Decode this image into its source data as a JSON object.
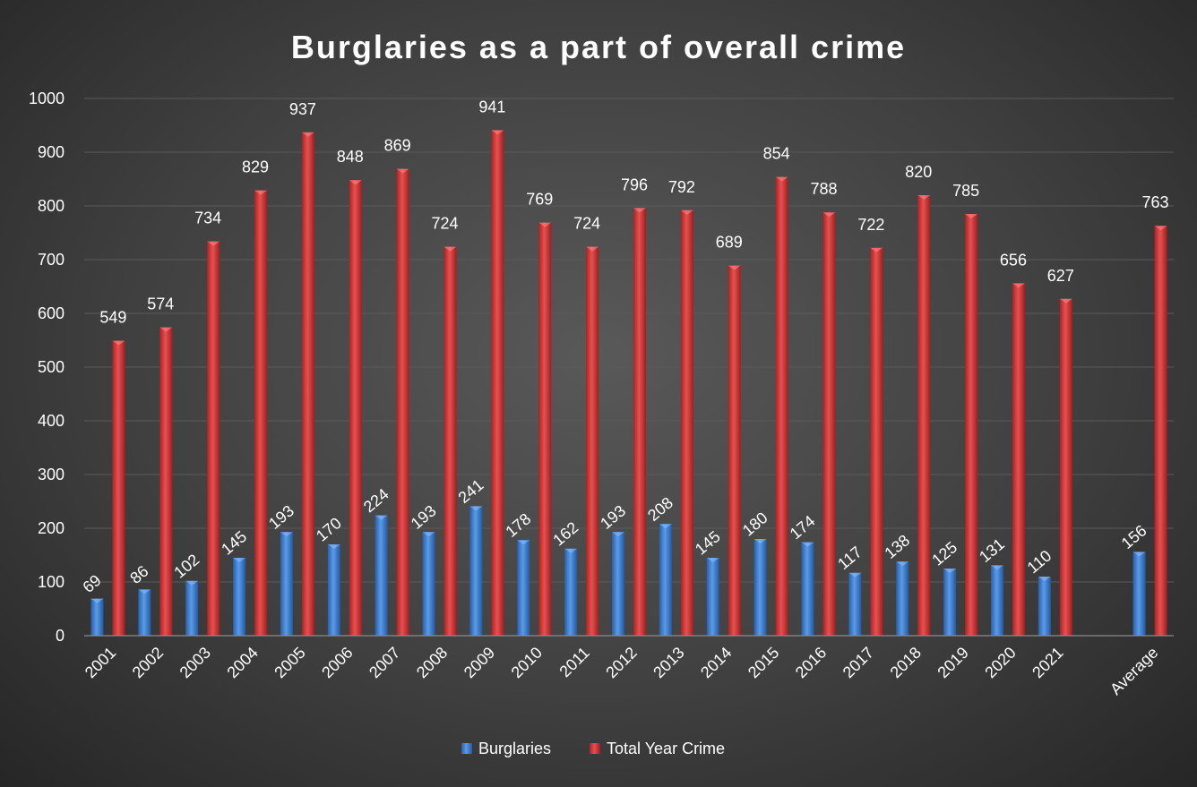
{
  "chart_data": {
    "type": "bar",
    "title": "Burglaries as a part of overall crime",
    "xlabel": "",
    "ylabel": "",
    "ylim": [
      0,
      1000
    ],
    "yticks": [
      0,
      100,
      200,
      300,
      400,
      500,
      600,
      700,
      800,
      900,
      1000
    ],
    "grid": true,
    "legend_position": "bottom",
    "categories": [
      "2001",
      "2002",
      "2003",
      "2004",
      "2005",
      "2006",
      "2007",
      "2008",
      "2009",
      "2010",
      "2011",
      "2012",
      "2013",
      "2014",
      "2015",
      "2016",
      "2017",
      "2018",
      "2019",
      "2020",
      "2021",
      "",
      "Average"
    ],
    "series": [
      {
        "name": "Burglaries",
        "color": "#3f7fd0",
        "values": [
          69,
          86,
          102,
          145,
          193,
          170,
          224,
          193,
          241,
          178,
          162,
          193,
          208,
          145,
          180,
          174,
          117,
          138,
          125,
          131,
          110,
          null,
          156
        ]
      },
      {
        "name": "Total Year Crime",
        "color": "#d03434",
        "values": [
          549,
          574,
          734,
          829,
          937,
          848,
          869,
          724,
          941,
          769,
          724,
          796,
          792,
          689,
          854,
          788,
          722,
          820,
          785,
          656,
          627,
          null,
          763
        ]
      }
    ]
  }
}
